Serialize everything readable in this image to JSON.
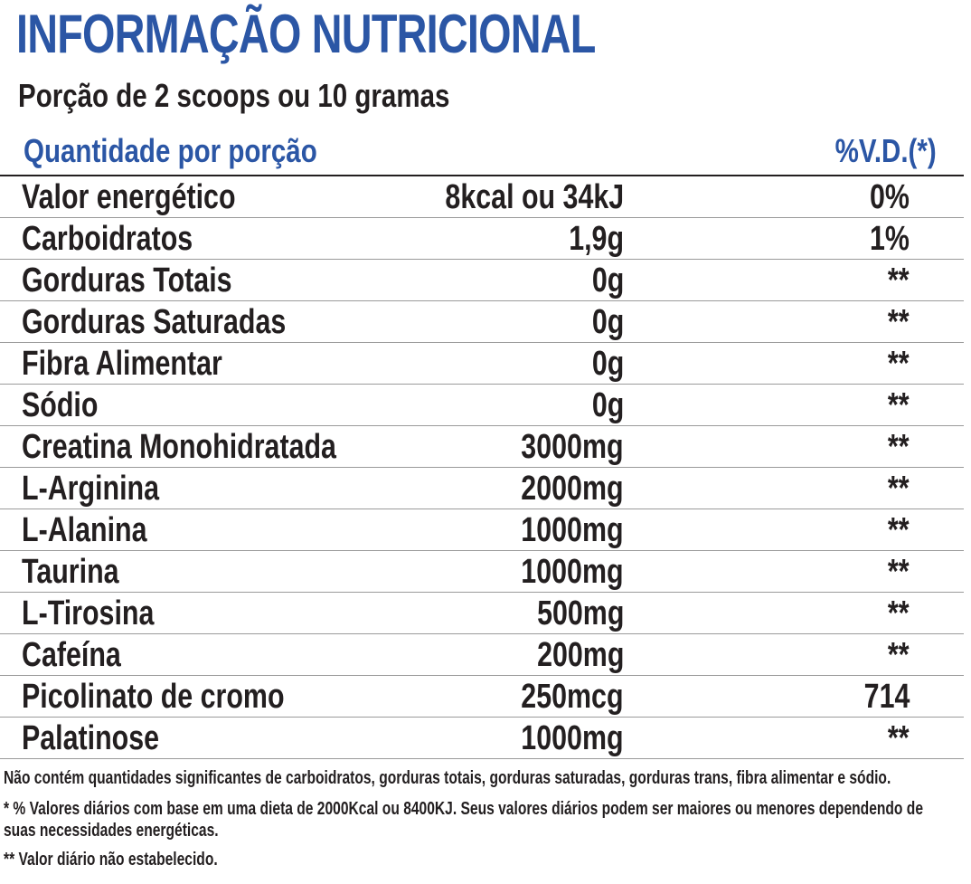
{
  "title": "INFORMAÇÃO NUTRICIONAL",
  "serving": "Porção de 2 scoops ou 10 gramas",
  "header": {
    "quantity_label": "Quantidade por porção",
    "vd_label": "%V.D.(*)"
  },
  "rows": [
    {
      "name": "Valor energético",
      "amount": "8kcal ou 34kJ",
      "vd": "0%"
    },
    {
      "name": "Carboidratos",
      "amount": "1,9g",
      "vd": "1%"
    },
    {
      "name": "Gorduras Totais",
      "amount": "0g",
      "vd": "**"
    },
    {
      "name": "Gorduras Saturadas",
      "amount": "0g",
      "vd": "**"
    },
    {
      "name": "Fibra Alimentar",
      "amount": "0g",
      "vd": "**"
    },
    {
      "name": "Sódio",
      "amount": "0g",
      "vd": "**"
    },
    {
      "name": "Creatina Monohidratada",
      "amount": "3000mg",
      "vd": "**"
    },
    {
      "name": "L-Arginina",
      "amount": "2000mg",
      "vd": "**"
    },
    {
      "name": "L-Alanina",
      "amount": "1000mg",
      "vd": "**"
    },
    {
      "name": "Taurina",
      "amount": "1000mg",
      "vd": "**"
    },
    {
      "name": "L-Tirosina",
      "amount": "500mg",
      "vd": "**"
    },
    {
      "name": "Cafeína",
      "amount": "200mg",
      "vd": "**"
    },
    {
      "name": "Picolinato de cromo",
      "amount": "250mcg",
      "vd": "714"
    },
    {
      "name": "Palatinose",
      "amount": "1000mg",
      "vd": "**"
    }
  ],
  "notes": {
    "not_significant": "Não contém quantidades significantes de carboidratos, gorduras totais, gorduras saturadas, gorduras trans, fibra alimentar e sódio.",
    "daily_values_line1": "* % Valores diários com base em uma dieta de 2000Kcal ou 8400KJ. Seus valores diários podem ser maiores ou menores dependendo de",
    "daily_values_line2": "suas necessidades energéticas.",
    "not_established": "** Valor diário não estabelecido."
  },
  "colors": {
    "accent_blue": "#2b56a5",
    "text": "#231f20"
  }
}
